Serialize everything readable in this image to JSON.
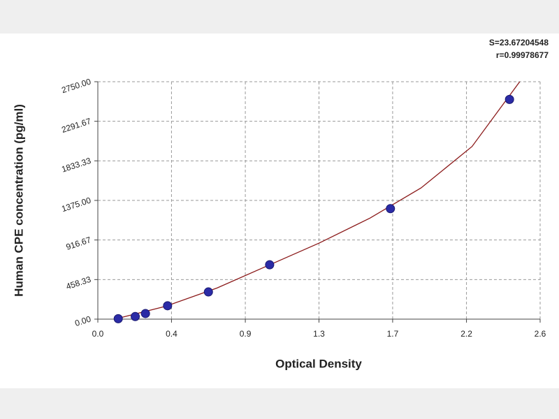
{
  "chart_data": {
    "type": "scatter",
    "xlabel": "Optical Density",
    "ylabel": "Human CPE concentration (pg/ml)",
    "annotations": [
      "S=23.67204548",
      "r=0.99978677"
    ],
    "xlim": [
      0,
      2.6
    ],
    "ylim": [
      0,
      2750
    ],
    "xticks": [
      {
        "value": 0,
        "label": "0.0"
      },
      {
        "value": 0.433,
        "label": "0.4"
      },
      {
        "value": 0.867,
        "label": "0.9"
      },
      1.3,
      {
        "value": 1.733,
        "label": "1.7"
      },
      {
        "value": 2.167,
        "label": "2.2"
      },
      2.6
    ],
    "yticks": [
      {
        "value": 0,
        "label": "0.00"
      },
      458.33,
      916.67,
      {
        "value": 1375,
        "label": "1375.00"
      },
      1833.33,
      2291.67,
      {
        "value": 2750,
        "label": "2750.00"
      }
    ],
    "grid": true,
    "series": [
      {
        "color": "#2b2ba6",
        "x": [
          0.12,
          0.22,
          0.28,
          0.41,
          0.65,
          1.01,
          1.72,
          2.42
        ],
        "values": [
          5,
          30,
          65,
          155,
          315,
          630,
          1280,
          2545
        ]
      }
    ],
    "fit_line": {
      "color": "#8b1a1a",
      "x": [
        0.1,
        0.4,
        0.7,
        1.0,
        1.3,
        1.6,
        1.9,
        2.2,
        2.48
      ],
      "values": [
        0,
        150,
        360,
        620,
        880,
        1170,
        1520,
        2000,
        2750
      ]
    }
  }
}
